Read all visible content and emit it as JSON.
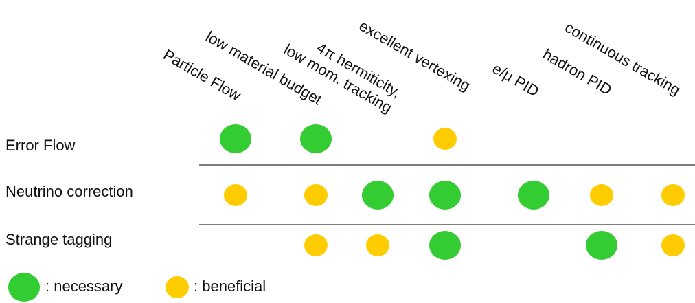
{
  "columns": [
    {
      "lines": [
        "Particle Flow"
      ]
    },
    {
      "lines": [
        "low material budget"
      ]
    },
    {
      "lines": [
        "4π hermiticity,",
        "low mom. tracking"
      ]
    },
    {
      "lines": [
        "excellent vertexing"
      ]
    },
    {
      "lines": [
        "e/μ PID"
      ]
    },
    {
      "lines": [
        "hadron PID"
      ]
    },
    {
      "lines": [
        "continuous tracking"
      ]
    }
  ],
  "rows": [
    {
      "label": "Error Flow",
      "cells": [
        "#33cc33",
        "#33cc33",
        null,
        "#ffcc00",
        null,
        null,
        null
      ]
    },
    {
      "label": "Neutrino correction",
      "cells": [
        "#ffcc00",
        "#ffcc00",
        "#33cc33",
        "#33cc33",
        "#33cc33",
        "#ffcc00",
        "#ffcc00"
      ]
    },
    {
      "label": "Strange tagging",
      "cells": [
        null,
        "#ffcc00",
        "#ffcc00",
        "#33cc33",
        null,
        "#33cc33",
        "#ffcc00"
      ]
    }
  ],
  "legend": [
    {
      "label": ": necessary",
      "color": "#33cc33"
    },
    {
      "label": ": beneficial",
      "color": "#ffcc00"
    }
  ]
}
